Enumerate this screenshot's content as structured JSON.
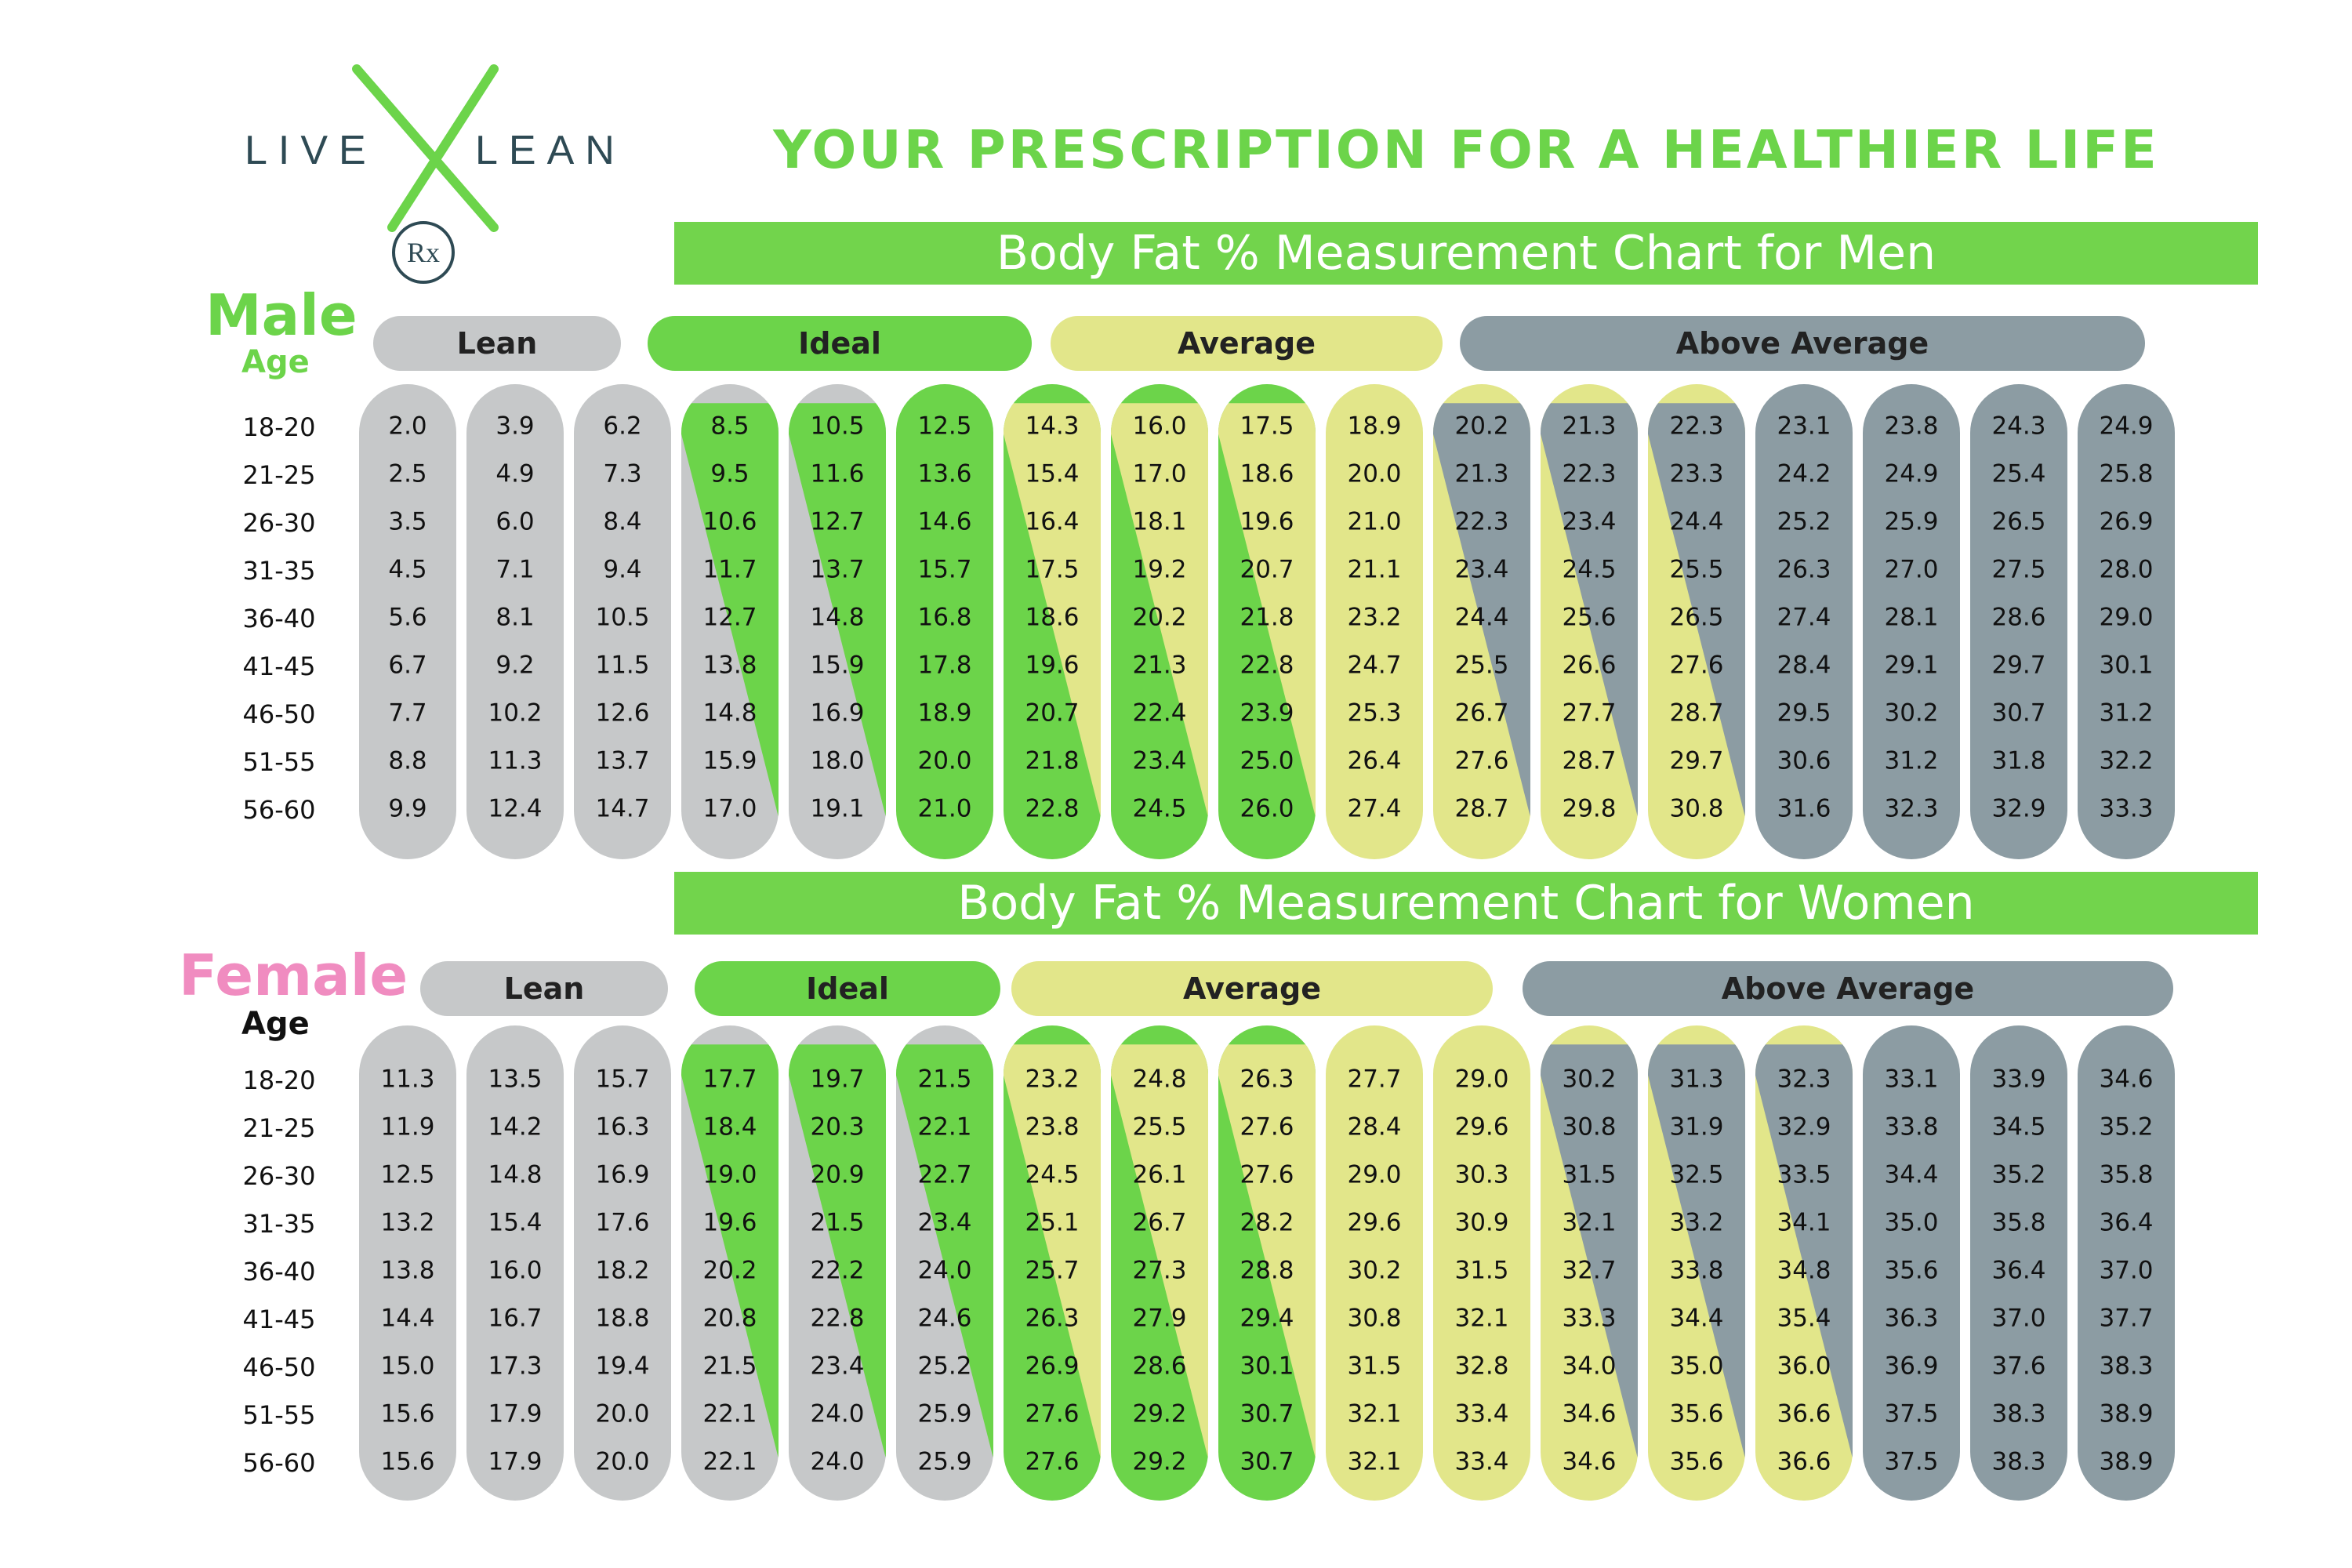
{
  "brand": {
    "word1": "LIVE",
    "word2": "LEAN",
    "mark": "Rx"
  },
  "title": "YOUR PRESCRIPTION FOR A HEALTHIER LIFE",
  "colors": {
    "lean": "#c6c8c9",
    "ideal": "#6cd44a",
    "average": "#e2e68a",
    "above_average": "#8c9ca3",
    "title_green": "#6cd44a",
    "female_pink": "#f08cc0"
  },
  "ages": [
    "18-20",
    "21-25",
    "26-30",
    "31-35",
    "36-40",
    "41-45",
    "46-50",
    "51-55",
    "56-60"
  ],
  "men": {
    "banner": "Body Fat % Measurement Chart for Men",
    "sex_label": "Male",
    "age_label": "Age",
    "categories": [
      {
        "key": "lean",
        "label": "Lean"
      },
      {
        "key": "ideal",
        "label": "Ideal"
      },
      {
        "key": "average",
        "label": "Average"
      },
      {
        "key": "above_average",
        "label": "Above Average"
      }
    ],
    "columns": [
      {
        "values": [
          "2.0",
          "2.5",
          "3.5",
          "4.5",
          "5.6",
          "6.7",
          "7.7",
          "8.8",
          "9.9"
        ],
        "fill": "lean"
      },
      {
        "values": [
          "3.9",
          "4.9",
          "6.0",
          "7.1",
          "8.1",
          "9.2",
          "10.2",
          "11.3",
          "12.4"
        ],
        "fill": "lean"
      },
      {
        "values": [
          "6.2",
          "7.3",
          "8.4",
          "9.4",
          "10.5",
          "11.5",
          "12.6",
          "13.7",
          "14.7"
        ],
        "fill": "lean"
      },
      {
        "values": [
          "8.5",
          "9.5",
          "10.6",
          "11.7",
          "12.7",
          "13.8",
          "14.8",
          "15.9",
          "17.0"
        ],
        "fill": "lean",
        "split": "ideal"
      },
      {
        "values": [
          "10.5",
          "11.6",
          "12.7",
          "13.7",
          "14.8",
          "15.9",
          "16.9",
          "18.0",
          "19.1"
        ],
        "fill": "lean",
        "split": "ideal"
      },
      {
        "values": [
          "12.5",
          "13.6",
          "14.6",
          "15.7",
          "16.8",
          "17.8",
          "18.9",
          "20.0",
          "21.0"
        ],
        "fill": "ideal"
      },
      {
        "values": [
          "14.3",
          "15.4",
          "16.4",
          "17.5",
          "18.6",
          "19.6",
          "20.7",
          "21.8",
          "22.8"
        ],
        "fill": "ideal",
        "split": "average"
      },
      {
        "values": [
          "16.0",
          "17.0",
          "18.1",
          "19.2",
          "20.2",
          "21.3",
          "22.4",
          "23.4",
          "24.5"
        ],
        "fill": "ideal",
        "split": "average"
      },
      {
        "values": [
          "17.5",
          "18.6",
          "19.6",
          "20.7",
          "21.8",
          "22.8",
          "23.9",
          "25.0",
          "26.0"
        ],
        "fill": "ideal",
        "split": "average"
      },
      {
        "values": [
          "18.9",
          "20.0",
          "21.0",
          "21.1",
          "23.2",
          "24.7",
          "25.3",
          "26.4",
          "27.4"
        ],
        "fill": "average"
      },
      {
        "values": [
          "20.2",
          "21.3",
          "22.3",
          "23.4",
          "24.4",
          "25.5",
          "26.7",
          "27.6",
          "28.7"
        ],
        "fill": "average",
        "split": "above_average"
      },
      {
        "values": [
          "21.3",
          "22.3",
          "23.4",
          "24.5",
          "25.6",
          "26.6",
          "27.7",
          "28.7",
          "29.8"
        ],
        "fill": "average",
        "split": "above_average"
      },
      {
        "values": [
          "22.3",
          "23.3",
          "24.4",
          "25.5",
          "26.5",
          "27.6",
          "28.7",
          "29.7",
          "30.8"
        ],
        "fill": "average",
        "split": "above_average"
      },
      {
        "values": [
          "23.1",
          "24.2",
          "25.2",
          "26.3",
          "27.4",
          "28.4",
          "29.5",
          "30.6",
          "31.6"
        ],
        "fill": "above_average"
      },
      {
        "values": [
          "23.8",
          "24.9",
          "25.9",
          "27.0",
          "28.1",
          "29.1",
          "30.2",
          "31.2",
          "32.3"
        ],
        "fill": "above_average"
      },
      {
        "values": [
          "24.3",
          "25.4",
          "26.5",
          "27.5",
          "28.6",
          "29.7",
          "30.7",
          "31.8",
          "32.9"
        ],
        "fill": "above_average"
      },
      {
        "values": [
          "24.9",
          "25.8",
          "26.9",
          "28.0",
          "29.0",
          "30.1",
          "31.2",
          "32.2",
          "33.3"
        ],
        "fill": "above_average"
      }
    ]
  },
  "women": {
    "banner": "Body Fat % Measurement Chart for Women",
    "sex_label": "Female",
    "age_label": "Age",
    "categories": [
      {
        "key": "lean",
        "label": "Lean"
      },
      {
        "key": "ideal",
        "label": "Ideal"
      },
      {
        "key": "average",
        "label": "Average"
      },
      {
        "key": "above_average",
        "label": "Above Average"
      }
    ],
    "columns": [
      {
        "values": [
          "11.3",
          "11.9",
          "12.5",
          "13.2",
          "13.8",
          "14.4",
          "15.0",
          "15.6",
          "15.6"
        ],
        "fill": "lean"
      },
      {
        "values": [
          "13.5",
          "14.2",
          "14.8",
          "15.4",
          "16.0",
          "16.7",
          "17.3",
          "17.9",
          "17.9"
        ],
        "fill": "lean"
      },
      {
        "values": [
          "15.7",
          "16.3",
          "16.9",
          "17.6",
          "18.2",
          "18.8",
          "19.4",
          "20.0",
          "20.0"
        ],
        "fill": "lean"
      },
      {
        "values": [
          "17.7",
          "18.4",
          "19.0",
          "19.6",
          "20.2",
          "20.8",
          "21.5",
          "22.1",
          "22.1"
        ],
        "fill": "lean",
        "split": "ideal"
      },
      {
        "values": [
          "19.7",
          "20.3",
          "20.9",
          "21.5",
          "22.2",
          "22.8",
          "23.4",
          "24.0",
          "24.0"
        ],
        "fill": "lean",
        "split": "ideal"
      },
      {
        "values": [
          "21.5",
          "22.1",
          "22.7",
          "23.4",
          "24.0",
          "24.6",
          "25.2",
          "25.9",
          "25.9"
        ],
        "fill": "lean",
        "split": "ideal"
      },
      {
        "values": [
          "23.2",
          "23.8",
          "24.5",
          "25.1",
          "25.7",
          "26.3",
          "26.9",
          "27.6",
          "27.6"
        ],
        "fill": "ideal",
        "split": "average"
      },
      {
        "values": [
          "24.8",
          "25.5",
          "26.1",
          "26.7",
          "27.3",
          "27.9",
          "28.6",
          "29.2",
          "29.2"
        ],
        "fill": "ideal",
        "split": "average"
      },
      {
        "values": [
          "26.3",
          "27.6",
          "27.6",
          "28.2",
          "28.8",
          "29.4",
          "30.1",
          "30.7",
          "30.7"
        ],
        "fill": "ideal",
        "split": "average"
      },
      {
        "values": [
          "27.7",
          "28.4",
          "29.0",
          "29.6",
          "30.2",
          "30.8",
          "31.5",
          "32.1",
          "32.1"
        ],
        "fill": "average"
      },
      {
        "values": [
          "29.0",
          "29.6",
          "30.3",
          "30.9",
          "31.5",
          "32.1",
          "32.8",
          "33.4",
          "33.4"
        ],
        "fill": "average"
      },
      {
        "values": [
          "30.2",
          "30.8",
          "31.5",
          "32.1",
          "32.7",
          "33.3",
          "34.0",
          "34.6",
          "34.6"
        ],
        "fill": "average",
        "split": "above_average"
      },
      {
        "values": [
          "31.3",
          "31.9",
          "32.5",
          "33.2",
          "33.8",
          "34.4",
          "35.0",
          "35.6",
          "35.6"
        ],
        "fill": "average",
        "split": "above_average"
      },
      {
        "values": [
          "32.3",
          "32.9",
          "33.5",
          "34.1",
          "34.8",
          "35.4",
          "36.0",
          "36.6",
          "36.6"
        ],
        "fill": "average",
        "split": "above_average"
      },
      {
        "values": [
          "33.1",
          "33.8",
          "34.4",
          "35.0",
          "35.6",
          "36.3",
          "36.9",
          "37.5",
          "37.5"
        ],
        "fill": "above_average"
      },
      {
        "values": [
          "33.9",
          "34.5",
          "35.2",
          "35.8",
          "36.4",
          "37.0",
          "37.6",
          "38.3",
          "38.3"
        ],
        "fill": "above_average"
      },
      {
        "values": [
          "34.6",
          "35.2",
          "35.8",
          "36.4",
          "37.0",
          "37.7",
          "38.3",
          "38.9",
          "38.9"
        ],
        "fill": "above_average"
      }
    ]
  }
}
